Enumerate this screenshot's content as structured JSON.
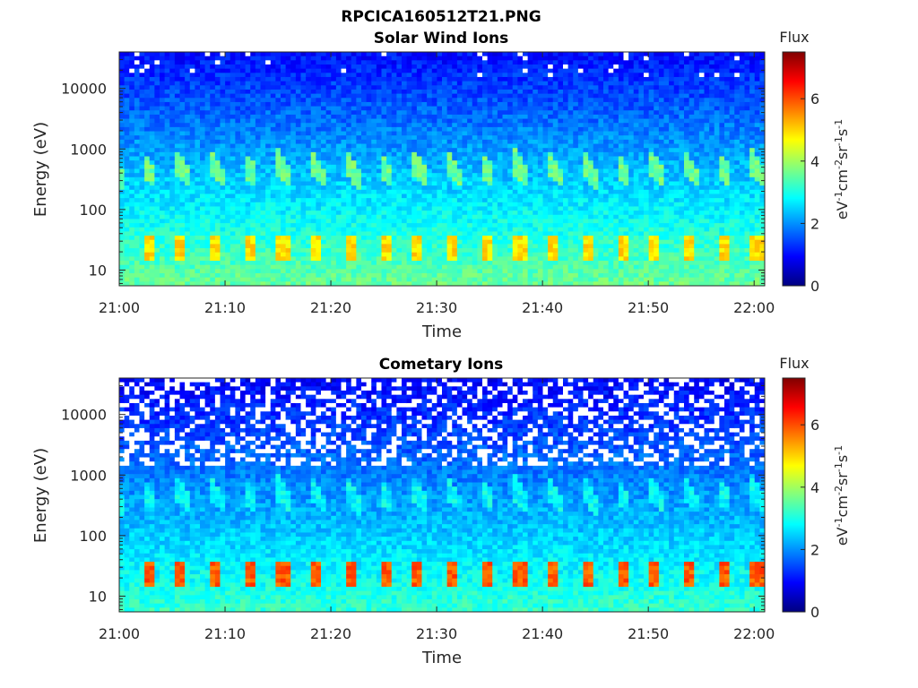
{
  "figure": {
    "title": "RPCICA160512T21.PNG",
    "colors": {
      "background": "#ffffff",
      "axis": "#262626",
      "text": "#262626"
    }
  },
  "chart_data": [
    {
      "type": "heatmap",
      "title": "Solar Wind Ions",
      "xlabel": "Time",
      "ylabel": "Energy (eV)",
      "yscale": "log",
      "x_range": [
        "21:00",
        "22:01"
      ],
      "ylim_eV": [
        5.5,
        40000
      ],
      "x_ticks": [
        "21:00",
        "21:10",
        "21:20",
        "21:30",
        "21:40",
        "21:50",
        "22:00"
      ],
      "y_ticks": [
        {
          "value": 10,
          "label": "10"
        },
        {
          "value": 100,
          "label": "100"
        },
        {
          "value": 1000,
          "label": "1000"
        },
        {
          "value": 10000,
          "label": "10000"
        }
      ],
      "colorbar": {
        "title": "Flux",
        "label": "eV-1cm-2sr-1s-1",
        "range": [
          0,
          7.5
        ],
        "ticks": [
          0,
          2,
          4,
          6
        ],
        "colormap": "jet"
      },
      "features": {
        "pulse_period_min": 3.2,
        "pulse_start_min": 2.2,
        "low_energy_band_eV": [
          15,
          35
        ],
        "low_energy_peak_flux": 4.9,
        "mid_energy_band_eV": [
          350,
          1000
        ],
        "mid_energy_peak_flux": 3.6,
        "background_flux_low_eV": 3.6,
        "background_flux_high_eV": 1.0,
        "missing_data_above_eV": 15000,
        "missing_data_probability": 0.04
      }
    },
    {
      "type": "heatmap",
      "title": "Cometary Ions",
      "xlabel": "Time",
      "ylabel": "Energy (eV)",
      "yscale": "log",
      "x_range": [
        "21:00",
        "22:01"
      ],
      "ylim_eV": [
        5.5,
        40000
      ],
      "x_ticks": [
        "21:00",
        "21:10",
        "21:20",
        "21:30",
        "21:40",
        "21:50",
        "22:00"
      ],
      "y_ticks": [
        {
          "value": 10,
          "label": "10"
        },
        {
          "value": 100,
          "label": "100"
        },
        {
          "value": 1000,
          "label": "1000"
        },
        {
          "value": 10000,
          "label": "10000"
        }
      ],
      "colorbar": {
        "title": "Flux",
        "label": "eV-1cm-2sr-1s-1",
        "range": [
          0,
          7.5
        ],
        "ticks": [
          0,
          2,
          4,
          6
        ],
        "colormap": "jet"
      },
      "features": {
        "pulse_period_min": 3.2,
        "pulse_start_min": 2.2,
        "low_energy_band_eV": [
          15,
          35
        ],
        "low_energy_peak_flux": 5.9,
        "mid_energy_band_eV": [
          350,
          1000
        ],
        "mid_energy_peak_flux": 2.8,
        "background_flux_low_eV": 3.2,
        "background_flux_high_eV": 0.9,
        "missing_data_above_eV": 1500,
        "missing_data_probability": 0.3
      }
    }
  ]
}
